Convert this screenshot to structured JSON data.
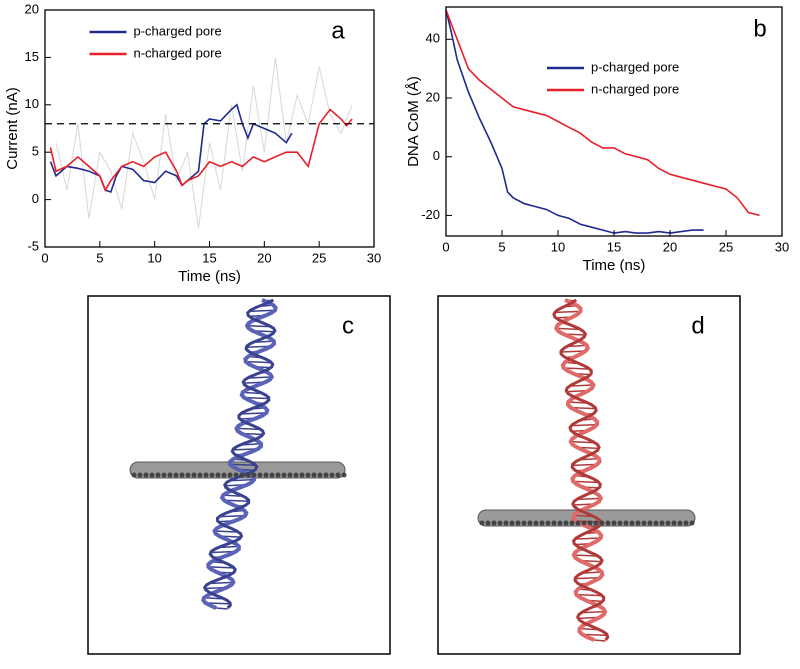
{
  "chart_data": [
    {
      "type": "line",
      "panel": "a",
      "xlabel": "Time (ns)",
      "ylabel": "Current (nA)",
      "xlim": [
        0,
        30
      ],
      "xticks": [
        0,
        5,
        10,
        15,
        20,
        25,
        30
      ],
      "ylim": [
        -5,
        20
      ],
      "yticks": [
        -5,
        0,
        5,
        10,
        15,
        20
      ],
      "hline": 8,
      "legend": "upper center",
      "series": [
        {
          "color": "#d8d8d8",
          "x": [
            1,
            2,
            3,
            4,
            5,
            6,
            7,
            8,
            9,
            10,
            11,
            12,
            13,
            14,
            15,
            16,
            17,
            18,
            19,
            20,
            21,
            22,
            23,
            24,
            25,
            26,
            27,
            28
          ],
          "values": [
            6,
            1,
            8,
            -2,
            5,
            3,
            -1,
            7,
            4,
            0,
            9,
            2,
            5,
            -3,
            6,
            1,
            10,
            3,
            12,
            5,
            15,
            6,
            11,
            8,
            14,
            9,
            7,
            10
          ]
        },
        {
          "name": "p-charged pore",
          "color": "#1f2a8c",
          "x": [
            0.5,
            1,
            2,
            3,
            4,
            5,
            5.5,
            6,
            6.5,
            7,
            8,
            9,
            10,
            11,
            12,
            12.5,
            13,
            14,
            14.5,
            15,
            16,
            17,
            17.5,
            18,
            18.5,
            19,
            20,
            21,
            22,
            22.5
          ],
          "values": [
            4,
            2.5,
            3.5,
            3.3,
            3,
            2.5,
            1,
            0.8,
            2.5,
            3.5,
            3.2,
            2,
            1.8,
            3,
            2.5,
            1.5,
            2,
            3,
            8,
            8.5,
            8.3,
            9.5,
            10,
            8,
            6.5,
            8,
            7.5,
            7,
            6,
            7
          ]
        },
        {
          "name": "n-charged pore",
          "color": "#e8202a",
          "x": [
            0.5,
            1,
            2,
            3,
            4,
            5,
            5.5,
            6,
            7,
            8,
            9,
            10,
            11,
            12,
            12.5,
            13,
            14,
            15,
            16,
            17,
            18,
            19,
            20,
            21,
            22,
            23,
            24,
            25,
            26,
            27,
            27.5,
            28
          ],
          "values": [
            5.5,
            3,
            3.5,
            4.5,
            3.5,
            2.5,
            1,
            2,
            3.5,
            4,
            3.5,
            4.5,
            5,
            3,
            1.5,
            2,
            2.5,
            4,
            3.5,
            4,
            3.5,
            4.5,
            4,
            4.5,
            5,
            5,
            3.5,
            8,
            9.5,
            8.5,
            7.8,
            8.5
          ]
        }
      ]
    },
    {
      "type": "line",
      "panel": "b",
      "xlabel": "Time (ns)",
      "ylabel": "DNA CoM (Å)",
      "xlim": [
        0,
        30
      ],
      "xticks": [
        0,
        5,
        10,
        15,
        20,
        25,
        30
      ],
      "ylim": [
        -27,
        51
      ],
      "yticks": [
        -20,
        0,
        20,
        40
      ],
      "legend": "upper right",
      "series": [
        {
          "name": "p-charged pore",
          "color": "#1f2a8c",
          "x": [
            0,
            0.5,
            1,
            2,
            3,
            4,
            5,
            5.5,
            6,
            7,
            8,
            9,
            10,
            11,
            12,
            13,
            14,
            15,
            16,
            17,
            18,
            19,
            20,
            21,
            22,
            23
          ],
          "values": [
            50,
            42,
            33,
            22,
            13,
            5,
            -4,
            -12,
            -14,
            -16,
            -17,
            -18,
            -20,
            -21,
            -23,
            -24,
            -25,
            -26,
            -25.5,
            -26,
            -26,
            -25.5,
            -26,
            -25.5,
            -25,
            -25
          ]
        },
        {
          "name": "n-charged pore",
          "color": "#e8202a",
          "x": [
            0,
            0.5,
            1,
            2,
            3,
            4,
            5,
            6,
            7,
            8,
            9,
            10,
            11,
            12,
            13,
            14,
            15,
            16,
            17,
            18,
            19,
            20,
            21,
            22,
            23,
            24,
            25,
            26,
            27,
            28
          ],
          "values": [
            50,
            45,
            40,
            30,
            26,
            23,
            20,
            17,
            16,
            15,
            14,
            12,
            10,
            8,
            5,
            3,
            3,
            1,
            0,
            -1,
            -4,
            -6,
            -7,
            -8,
            -9,
            -10,
            -11,
            -14,
            -19,
            -20
          ]
        }
      ]
    }
  ],
  "images": [
    {
      "label": "c"
    },
    {
      "label": "d"
    }
  ]
}
